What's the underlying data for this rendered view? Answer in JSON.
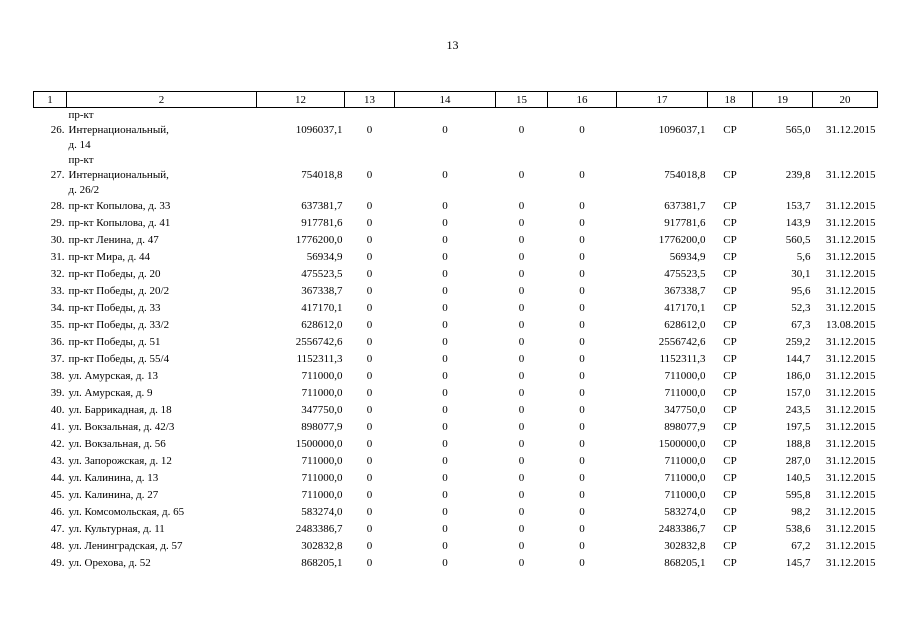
{
  "page_number": "13",
  "header": [
    "1",
    "2",
    "12",
    "13",
    "14",
    "15",
    "16",
    "17",
    "18",
    "19",
    "20"
  ],
  "rows": [
    {
      "n": "26.",
      "addr": [
        "пр-кт",
        "Интернациональный,",
        "д. 14"
      ],
      "c12": "1096037,1",
      "c13": "0",
      "c14": "0",
      "c15": "0",
      "c16": "0",
      "c17": "1096037,1",
      "c18": "СР",
      "c19": "565,0",
      "c20": "31.12.2015"
    },
    {
      "n": "27.",
      "addr": [
        "пр-кт",
        "Интернациональный,",
        "д. 26/2"
      ],
      "c12": "754018,8",
      "c13": "0",
      "c14": "0",
      "c15": "0",
      "c16": "0",
      "c17": "754018,8",
      "c18": "СР",
      "c19": "239,8",
      "c20": "31.12.2015"
    },
    {
      "n": "28.",
      "addr": [
        "пр-кт Копылова, д. 33"
      ],
      "c12": "637381,7",
      "c13": "0",
      "c14": "0",
      "c15": "0",
      "c16": "0",
      "c17": "637381,7",
      "c18": "СР",
      "c19": "153,7",
      "c20": "31.12.2015"
    },
    {
      "n": "29.",
      "addr": [
        "пр-кт Копылова, д. 41"
      ],
      "c12": "917781,6",
      "c13": "0",
      "c14": "0",
      "c15": "0",
      "c16": "0",
      "c17": "917781,6",
      "c18": "СР",
      "c19": "143,9",
      "c20": "31.12.2015"
    },
    {
      "n": "30.",
      "addr": [
        "пр-кт Ленина, д. 47"
      ],
      "c12": "1776200,0",
      "c13": "0",
      "c14": "0",
      "c15": "0",
      "c16": "0",
      "c17": "1776200,0",
      "c18": "СР",
      "c19": "560,5",
      "c20": "31.12.2015"
    },
    {
      "n": "31.",
      "addr": [
        "пр-кт Мира, д. 44"
      ],
      "c12": "56934,9",
      "c13": "0",
      "c14": "0",
      "c15": "0",
      "c16": "0",
      "c17": "56934,9",
      "c18": "СР",
      "c19": "5,6",
      "c20": "31.12.2015"
    },
    {
      "n": "32.",
      "addr": [
        "пр-кт Победы, д. 20"
      ],
      "c12": "475523,5",
      "c13": "0",
      "c14": "0",
      "c15": "0",
      "c16": "0",
      "c17": "475523,5",
      "c18": "СР",
      "c19": "30,1",
      "c20": "31.12.2015"
    },
    {
      "n": "33.",
      "addr": [
        "пр-кт Победы, д. 20/2"
      ],
      "c12": "367338,7",
      "c13": "0",
      "c14": "0",
      "c15": "0",
      "c16": "0",
      "c17": "367338,7",
      "c18": "СР",
      "c19": "95,6",
      "c20": "31.12.2015"
    },
    {
      "n": "34.",
      "addr": [
        "пр-кт Победы, д. 33"
      ],
      "c12": "417170,1",
      "c13": "0",
      "c14": "0",
      "c15": "0",
      "c16": "0",
      "c17": "417170,1",
      "c18": "СР",
      "c19": "52,3",
      "c20": "31.12.2015"
    },
    {
      "n": "35.",
      "addr": [
        "пр-кт Победы, д. 33/2"
      ],
      "c12": "628612,0",
      "c13": "0",
      "c14": "0",
      "c15": "0",
      "c16": "0",
      "c17": "628612,0",
      "c18": "СР",
      "c19": "67,3",
      "c20": "13.08.2015"
    },
    {
      "n": "36.",
      "addr": [
        "пр-кт Победы, д. 51"
      ],
      "c12": "2556742,6",
      "c13": "0",
      "c14": "0",
      "c15": "0",
      "c16": "0",
      "c17": "2556742,6",
      "c18": "СР",
      "c19": "259,2",
      "c20": "31.12.2015"
    },
    {
      "n": "37.",
      "addr": [
        "пр-кт Победы, д. 55/4"
      ],
      "c12": "1152311,3",
      "c13": "0",
      "c14": "0",
      "c15": "0",
      "c16": "0",
      "c17": "1152311,3",
      "c18": "СР",
      "c19": "144,7",
      "c20": "31.12.2015"
    },
    {
      "n": "38.",
      "addr": [
        "ул. Амурская, д. 13"
      ],
      "c12": "711000,0",
      "c13": "0",
      "c14": "0",
      "c15": "0",
      "c16": "0",
      "c17": "711000,0",
      "c18": "СР",
      "c19": "186,0",
      "c20": "31.12.2015"
    },
    {
      "n": "39.",
      "addr": [
        "ул. Амурская, д. 9"
      ],
      "c12": "711000,0",
      "c13": "0",
      "c14": "0",
      "c15": "0",
      "c16": "0",
      "c17": "711000,0",
      "c18": "СР",
      "c19": "157,0",
      "c20": "31.12.2015"
    },
    {
      "n": "40.",
      "addr": [
        "ул. Баррикадная, д. 18"
      ],
      "c12": "347750,0",
      "c13": "0",
      "c14": "0",
      "c15": "0",
      "c16": "0",
      "c17": "347750,0",
      "c18": "СР",
      "c19": "243,5",
      "c20": "31.12.2015"
    },
    {
      "n": "41.",
      "addr": [
        "ул. Вокзальная, д. 42/3"
      ],
      "c12": "898077,9",
      "c13": "0",
      "c14": "0",
      "c15": "0",
      "c16": "0",
      "c17": "898077,9",
      "c18": "СР",
      "c19": "197,5",
      "c20": "31.12.2015"
    },
    {
      "n": "42.",
      "addr": [
        "ул. Вокзальная, д. 56"
      ],
      "c12": "1500000,0",
      "c13": "0",
      "c14": "0",
      "c15": "0",
      "c16": "0",
      "c17": "1500000,0",
      "c18": "СР",
      "c19": "188,8",
      "c20": "31.12.2015"
    },
    {
      "n": "43.",
      "addr": [
        "ул. Запорожская, д. 12"
      ],
      "c12": "711000,0",
      "c13": "0",
      "c14": "0",
      "c15": "0",
      "c16": "0",
      "c17": "711000,0",
      "c18": "СР",
      "c19": "287,0",
      "c20": "31.12.2015"
    },
    {
      "n": "44.",
      "addr": [
        "ул. Калинина, д. 13"
      ],
      "c12": "711000,0",
      "c13": "0",
      "c14": "0",
      "c15": "0",
      "c16": "0",
      "c17": "711000,0",
      "c18": "СР",
      "c19": "140,5",
      "c20": "31.12.2015"
    },
    {
      "n": "45.",
      "addr": [
        "ул. Калинина, д. 27"
      ],
      "c12": "711000,0",
      "c13": "0",
      "c14": "0",
      "c15": "0",
      "c16": "0",
      "c17": "711000,0",
      "c18": "СР",
      "c19": "595,8",
      "c20": "31.12.2015"
    },
    {
      "n": "46.",
      "addr": [
        "ул. Комсомольская, д. 65"
      ],
      "c12": "583274,0",
      "c13": "0",
      "c14": "0",
      "c15": "0",
      "c16": "0",
      "c17": "583274,0",
      "c18": "СР",
      "c19": "98,2",
      "c20": "31.12.2015"
    },
    {
      "n": "47.",
      "addr": [
        "ул. Культурная, д. 11"
      ],
      "c12": "2483386,7",
      "c13": "0",
      "c14": "0",
      "c15": "0",
      "c16": "0",
      "c17": "2483386,7",
      "c18": "СР",
      "c19": "538,6",
      "c20": "31.12.2015"
    },
    {
      "n": "48.",
      "addr": [
        "ул. Ленинградская, д. 57"
      ],
      "c12": "302832,8",
      "c13": "0",
      "c14": "0",
      "c15": "0",
      "c16": "0",
      "c17": "302832,8",
      "c18": "СР",
      "c19": "67,2",
      "c20": "31.12.2015"
    },
    {
      "n": "49.",
      "addr": [
        "ул. Орехова, д. 52"
      ],
      "c12": "868205,1",
      "c13": "0",
      "c14": "0",
      "c15": "0",
      "c16": "0",
      "c17": "868205,1",
      "c18": "СР",
      "c19": "145,7",
      "c20": "31.12.2015"
    }
  ]
}
